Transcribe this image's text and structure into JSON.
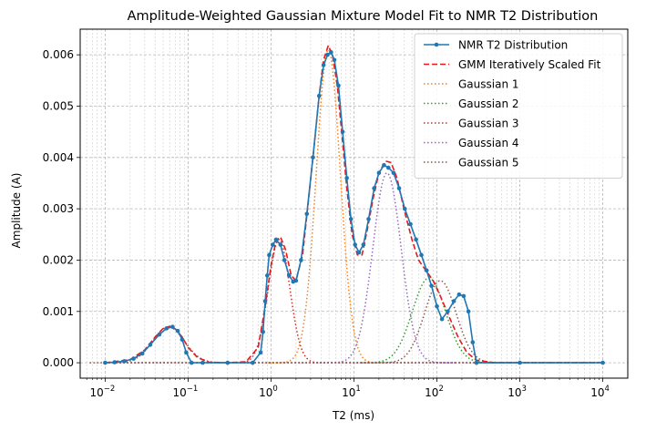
{
  "chart_data": {
    "type": "line",
    "title": "Amplitude-Weighted Gaussian Mixture Model Fit to NMR T2 Distribution",
    "xlabel": "T2 (ms)",
    "ylabel": "Amplitude (A)",
    "xscale": "log",
    "xlim": [
      0.005,
      20000
    ],
    "ylim": [
      -0.0003,
      0.0065
    ],
    "x_tick_values": [
      0.01,
      0.1,
      1,
      10,
      100,
      1000,
      10000
    ],
    "x_tick_labels": [
      {
        "base": "10",
        "exp": "−2"
      },
      {
        "base": "10",
        "exp": "−1"
      },
      {
        "base": "10",
        "exp": "0"
      },
      {
        "base": "10",
        "exp": "1"
      },
      {
        "base": "10",
        "exp": "2"
      },
      {
        "base": "10",
        "exp": "3"
      },
      {
        "base": "10",
        "exp": "4"
      }
    ],
    "y_tick_values": [
      0,
      0.001,
      0.002,
      0.003,
      0.004,
      0.005,
      0.006
    ],
    "y_tick_labels": [
      "0.000",
      "0.001",
      "0.002",
      "0.003",
      "0.004",
      "0.005",
      "0.006"
    ],
    "grid": true,
    "legend_position": "top-right",
    "series": [
      {
        "name": "NMR T2 Distribution",
        "style": "line-marker",
        "color": "#1f77b4",
        "points": [
          [
            0.01,
            0.0
          ],
          [
            0.013,
            1e-05
          ],
          [
            0.017,
            3e-05
          ],
          [
            0.022,
            8e-05
          ],
          [
            0.028,
            0.00018
          ],
          [
            0.035,
            0.00035
          ],
          [
            0.045,
            0.00055
          ],
          [
            0.055,
            0.00067
          ],
          [
            0.065,
            0.0007
          ],
          [
            0.075,
            0.00062
          ],
          [
            0.085,
            0.00045
          ],
          [
            0.095,
            0.0002
          ],
          [
            0.11,
            0.0
          ],
          [
            0.15,
            0.0
          ],
          [
            0.3,
            0.0
          ],
          [
            0.6,
            0.0
          ],
          [
            0.75,
            0.0002
          ],
          [
            0.8,
            0.0006
          ],
          [
            0.85,
            0.0012
          ],
          [
            0.9,
            0.0017
          ],
          [
            0.95,
            0.0021
          ],
          [
            1.05,
            0.0023
          ],
          [
            1.15,
            0.0024
          ],
          [
            1.3,
            0.0023
          ],
          [
            1.45,
            0.002
          ],
          [
            1.65,
            0.0017
          ],
          [
            1.85,
            0.00158
          ],
          [
            2.0,
            0.0016
          ],
          [
            2.3,
            0.002
          ],
          [
            2.7,
            0.0029
          ],
          [
            3.2,
            0.004
          ],
          [
            3.8,
            0.0052
          ],
          [
            4.3,
            0.0058
          ],
          [
            4.8,
            0.006
          ],
          [
            5.3,
            0.00605
          ],
          [
            5.8,
            0.0059
          ],
          [
            6.5,
            0.0054
          ],
          [
            7.3,
            0.0045
          ],
          [
            8.2,
            0.0036
          ],
          [
            9.2,
            0.0028
          ],
          [
            10.3,
            0.0023
          ],
          [
            11.5,
            0.00215
          ],
          [
            13.0,
            0.0023
          ],
          [
            15.0,
            0.0028
          ],
          [
            17.5,
            0.0034
          ],
          [
            20.0,
            0.0037
          ],
          [
            23.0,
            0.00385
          ],
          [
            26.0,
            0.0038
          ],
          [
            30.0,
            0.0037
          ],
          [
            35.0,
            0.0034
          ],
          [
            41.0,
            0.003
          ],
          [
            48.0,
            0.0027
          ],
          [
            56.0,
            0.0024
          ],
          [
            65.0,
            0.0021
          ],
          [
            75.0,
            0.0018
          ],
          [
            86.0,
            0.0015
          ],
          [
            100.0,
            0.0011
          ],
          [
            115.0,
            0.00085
          ],
          [
            135.0,
            0.001
          ],
          [
            160.0,
            0.0012
          ],
          [
            185.0,
            0.00133
          ],
          [
            210.0,
            0.0013
          ],
          [
            240.0,
            0.001
          ],
          [
            270.0,
            0.0004
          ],
          [
            300.0,
            0.0
          ],
          [
            1000.0,
            0.0
          ],
          [
            10000.0,
            0.0
          ]
        ]
      },
      {
        "name": "GMM Iteratively Scaled Fit",
        "style": "dashed",
        "color": "#e8191c",
        "points": [
          [
            0.01,
            0.0
          ],
          [
            0.02,
            6e-05
          ],
          [
            0.03,
            0.00025
          ],
          [
            0.04,
            0.0005
          ],
          [
            0.05,
            0.00067
          ],
          [
            0.06,
            0.00071
          ],
          [
            0.07,
            0.00066
          ],
          [
            0.085,
            0.0005
          ],
          [
            0.1,
            0.0003
          ],
          [
            0.13,
            0.0001
          ],
          [
            0.18,
            1e-05
          ],
          [
            0.3,
            0.0
          ],
          [
            0.5,
            2e-05
          ],
          [
            0.7,
            0.0003
          ],
          [
            0.85,
            0.0011
          ],
          [
            1.0,
            0.0019
          ],
          [
            1.15,
            0.00238
          ],
          [
            1.3,
            0.00245
          ],
          [
            1.5,
            0.0022
          ],
          [
            1.75,
            0.0017
          ],
          [
            2.0,
            0.0016
          ],
          [
            2.4,
            0.0021
          ],
          [
            2.8,
            0.0031
          ],
          [
            3.3,
            0.0042
          ],
          [
            3.8,
            0.0052
          ],
          [
            4.3,
            0.0059
          ],
          [
            4.9,
            0.00618
          ],
          [
            5.5,
            0.006
          ],
          [
            6.3,
            0.0054
          ],
          [
            7.2,
            0.0044
          ],
          [
            8.2,
            0.0034
          ],
          [
            9.5,
            0.0025
          ],
          [
            11.0,
            0.0021
          ],
          [
            12.5,
            0.0021
          ],
          [
            14.5,
            0.0026
          ],
          [
            17.0,
            0.0032
          ],
          [
            20.0,
            0.0037
          ],
          [
            24.0,
            0.00393
          ],
          [
            28.0,
            0.0039
          ],
          [
            33.0,
            0.0036
          ],
          [
            40.0,
            0.003
          ],
          [
            50.0,
            0.0024
          ],
          [
            60.0,
            0.002
          ],
          [
            75.0,
            0.00178
          ],
          [
            90.0,
            0.0016
          ],
          [
            110.0,
            0.0013
          ],
          [
            140.0,
            0.0009
          ],
          [
            180.0,
            0.0005
          ],
          [
            230.0,
            0.0002
          ],
          [
            300.0,
            5e-05
          ],
          [
            500.0,
            0.0
          ],
          [
            10000.0,
            0.0
          ]
        ]
      },
      {
        "name": "Gaussian 1",
        "style": "dotted",
        "color": "#ff7f0e",
        "gaussian": {
          "center": 4.9,
          "amplitude": 0.0061,
          "sigma_log10": 0.145
        }
      },
      {
        "name": "Gaussian 2",
        "style": "dotted",
        "color": "#2ca02c",
        "gaussian": {
          "center": 80,
          "amplitude": 0.00165,
          "sigma_log10": 0.2
        }
      },
      {
        "name": "Gaussian 3",
        "style": "dotted",
        "color": "#d62728",
        "gaussian": {
          "center": 1.25,
          "amplitude": 0.0024,
          "sigma_log10": 0.13
        }
      },
      {
        "name": "Gaussian 4",
        "style": "dotted",
        "color": "#9467bd",
        "gaussian": {
          "center": 25,
          "amplitude": 0.0037,
          "sigma_log10": 0.17
        }
      },
      {
        "name": "Gaussian 5",
        "style": "dotted",
        "color": "#8c564b",
        "gaussian": {
          "center": 0.058,
          "amplitude": 0.0007,
          "sigma_log10": 0.19
        },
        "tail": {
          "center": 110,
          "amplitude": 0.0016,
          "sigma_log10": 0.19
        }
      }
    ]
  }
}
